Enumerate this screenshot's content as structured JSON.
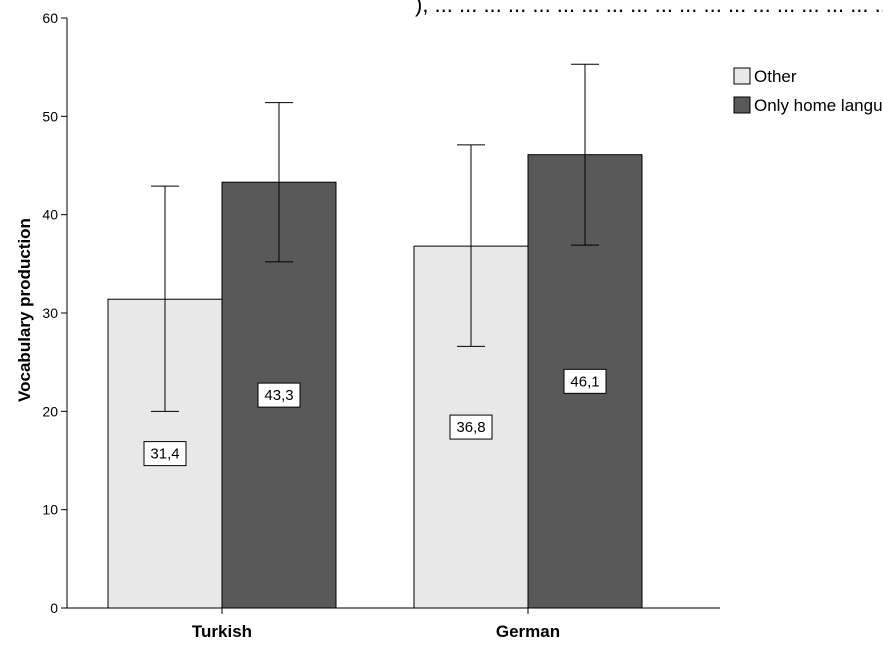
{
  "header_fragment": "), ... ... ... ... ... ... ... ... ... ... ... ... ... ... ... ... ... ... ... ... ... ... ... ... ... ... ... ... ... ... ... ... ... ... ... ... ... ... ... ... ... ... ... ... ... ... ... ... ... ... ... ... ... ... ... ... ... ... ... ... ... ... ... ... ... ... ... ... ... ... ... ... ... ... ...",
  "chart_data": {
    "type": "bar",
    "categories": [
      "Turkish",
      "German"
    ],
    "series": [
      {
        "name": "Other",
        "color": "#e8e8e8",
        "values": [
          31.4,
          36.8
        ],
        "value_labels": [
          "31,4",
          "36,8"
        ],
        "error_low": [
          20.0,
          26.6
        ],
        "error_high": [
          42.9,
          47.1
        ]
      },
      {
        "name": "Only home language",
        "color": "#595959",
        "values": [
          43.3,
          46.1
        ],
        "value_labels": [
          "43,3",
          "46,1"
        ],
        "error_low": [
          35.2,
          36.9
        ],
        "error_high": [
          51.4,
          55.3
        ]
      }
    ],
    "xlabel": "",
    "ylabel": "Vocabulary production",
    "ylim": [
      0,
      60
    ],
    "yticks": [
      0,
      10,
      20,
      30,
      40,
      50,
      60
    ],
    "legend_position": "top-right",
    "grid": false
  }
}
